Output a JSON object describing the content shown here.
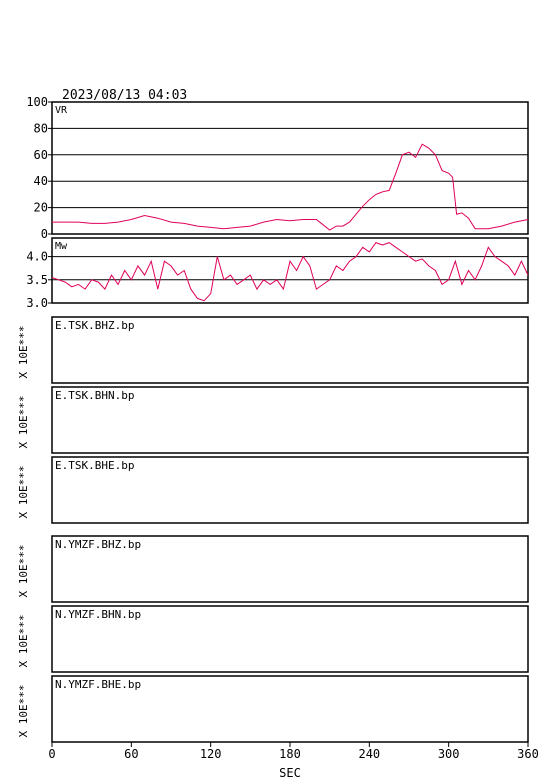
{
  "header": {
    "datetime": "2023/08/13 04:03"
  },
  "colors": {
    "trace": "#e0005a",
    "frame": "#000000"
  },
  "chart_data": [
    {
      "type": "line",
      "name": "vr-panel",
      "label": "VR",
      "xlim": [
        0,
        360
      ],
      "ylim": [
        0,
        100
      ],
      "yticks": [
        "0",
        "20",
        "40",
        "60",
        "80",
        "100"
      ],
      "grid": true,
      "x": [
        0,
        10,
        20,
        30,
        40,
        50,
        60,
        70,
        80,
        90,
        100,
        110,
        120,
        130,
        140,
        150,
        160,
        170,
        180,
        190,
        200,
        205,
        210,
        215,
        220,
        225,
        230,
        235,
        240,
        245,
        250,
        255,
        260,
        265,
        270,
        275,
        280,
        285,
        290,
        295,
        300,
        303,
        306,
        310,
        315,
        320,
        330,
        340,
        350,
        360
      ],
      "values": [
        9,
        9,
        9,
        8,
        8,
        9,
        11,
        14,
        12,
        9,
        8,
        6,
        5,
        4,
        5,
        6,
        9,
        11,
        10,
        11,
        11,
        7,
        3,
        6,
        6,
        9,
        15,
        21,
        26,
        30,
        32,
        33,
        46,
        60,
        62,
        58,
        68,
        65,
        60,
        48,
        46,
        43,
        15,
        16,
        12,
        4,
        4,
        6,
        9,
        11
      ]
    },
    {
      "type": "line",
      "name": "mw-panel",
      "label": "Mw",
      "xlim": [
        0,
        360
      ],
      "ylim": [
        3.0,
        4.4
      ],
      "yticks": [
        "3.0",
        "3.5",
        "4.0"
      ],
      "grid": true,
      "x": [
        0,
        5,
        10,
        15,
        20,
        25,
        30,
        35,
        40,
        45,
        50,
        55,
        60,
        65,
        70,
        75,
        80,
        85,
        90,
        95,
        100,
        105,
        110,
        115,
        120,
        125,
        130,
        135,
        140,
        145,
        150,
        155,
        160,
        165,
        170,
        175,
        180,
        185,
        190,
        195,
        200,
        205,
        210,
        215,
        220,
        225,
        230,
        235,
        240,
        245,
        250,
        255,
        260,
        265,
        270,
        275,
        280,
        285,
        290,
        295,
        300,
        305,
        310,
        315,
        320,
        325,
        330,
        335,
        340,
        345,
        350,
        355,
        360
      ],
      "values": [
        3.55,
        3.5,
        3.45,
        3.35,
        3.4,
        3.3,
        3.5,
        3.45,
        3.3,
        3.6,
        3.4,
        3.7,
        3.5,
        3.8,
        3.6,
        3.9,
        3.3,
        3.9,
        3.8,
        3.6,
        3.7,
        3.3,
        3.1,
        3.05,
        3.2,
        4.0,
        3.5,
        3.6,
        3.4,
        3.5,
        3.6,
        3.3,
        3.5,
        3.4,
        3.5,
        3.3,
        3.9,
        3.7,
        4.0,
        3.8,
        3.3,
        3.4,
        3.5,
        3.8,
        3.7,
        3.9,
        4.0,
        4.2,
        4.1,
        4.3,
        4.25,
        4.3,
        4.2,
        4.1,
        4.0,
        3.9,
        3.95,
        3.8,
        3.7,
        3.4,
        3.5,
        3.9,
        3.4,
        3.7,
        3.5,
        3.8,
        4.2,
        4.0,
        3.9,
        3.8,
        3.6,
        3.9,
        3.6
      ]
    }
  ],
  "waveform_panels": [
    {
      "name": "E.TSK.BHZ.bp",
      "scale": "X 10E***"
    },
    {
      "name": "E.TSK.BHN.bp",
      "scale": "X 10E***"
    },
    {
      "name": "E.TSK.BHE.bp",
      "scale": "X 10E***"
    },
    {
      "name": "N.YMZF.BHZ.bp",
      "scale": "X 10E***"
    },
    {
      "name": "N.YMZF.BHN.bp",
      "scale": "X 10E***"
    },
    {
      "name": "N.YMZF.BHE.bp",
      "scale": "X 10E***"
    }
  ],
  "x_axis": {
    "label": "SEC",
    "ticks": [
      0,
      60,
      120,
      180,
      240,
      300,
      360
    ],
    "tick_labels": [
      "0",
      "60",
      "120",
      "180",
      "240",
      "300",
      "360"
    ]
  }
}
